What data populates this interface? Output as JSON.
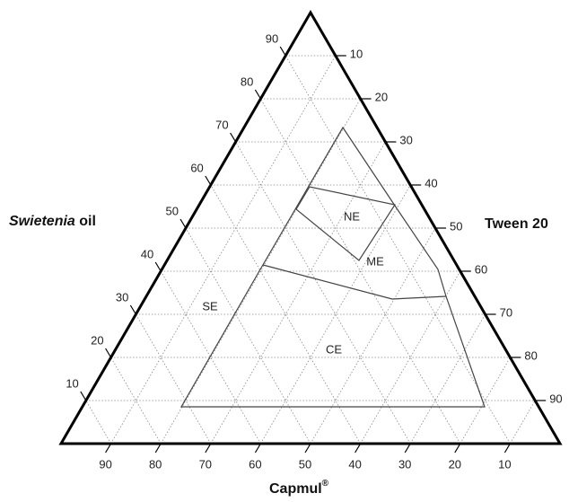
{
  "axes": {
    "left": {
      "label_italic": "Swietenia",
      "label_rest": " oil",
      "ticks": [
        "10",
        "20",
        "30",
        "40",
        "50",
        "60",
        "70",
        "80",
        "90"
      ]
    },
    "right": {
      "label": "Tween 20",
      "ticks": [
        "10",
        "20",
        "30",
        "40",
        "50",
        "60",
        "70",
        "80",
        "90"
      ]
    },
    "bottom": {
      "label": "Capmul",
      "label_sup": "®",
      "ticks": [
        "90",
        "80",
        "70",
        "60",
        "50",
        "40",
        "30",
        "20",
        "10"
      ]
    }
  },
  "regions": [
    "NE",
    "ME",
    "SE",
    "CE"
  ]
}
